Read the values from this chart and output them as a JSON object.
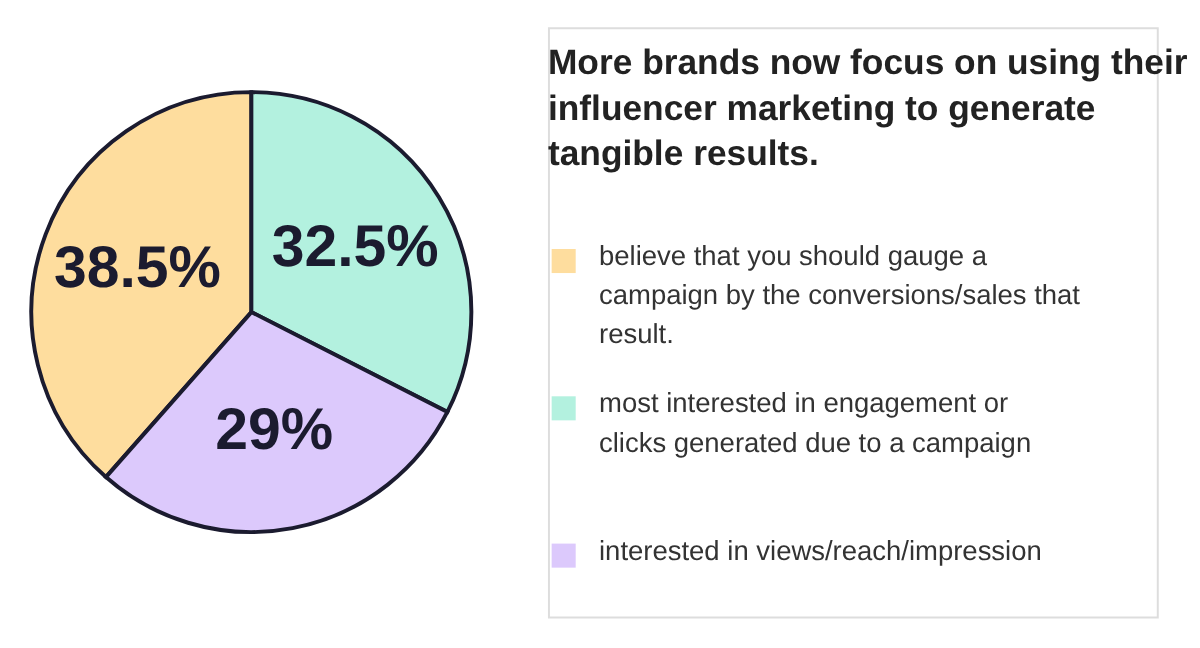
{
  "chart_data": {
    "type": "pie",
    "title": "More brands now focus on using their influencer marketing to generate tangible results.",
    "categories": [
      "believe that you should gauge a campaign by the conversions/sales that result.",
      "most interested in engagement or clicks generated due to a campaign",
      "interested in views/reach/impression"
    ],
    "values": [
      38.5,
      32.5,
      29
    ],
    "colors": [
      "#fedd9e",
      "#b3f1df",
      "#dcc9fc"
    ],
    "value_labels": [
      "38.5%",
      "32.5%",
      "29%"
    ],
    "legend": "right"
  }
}
